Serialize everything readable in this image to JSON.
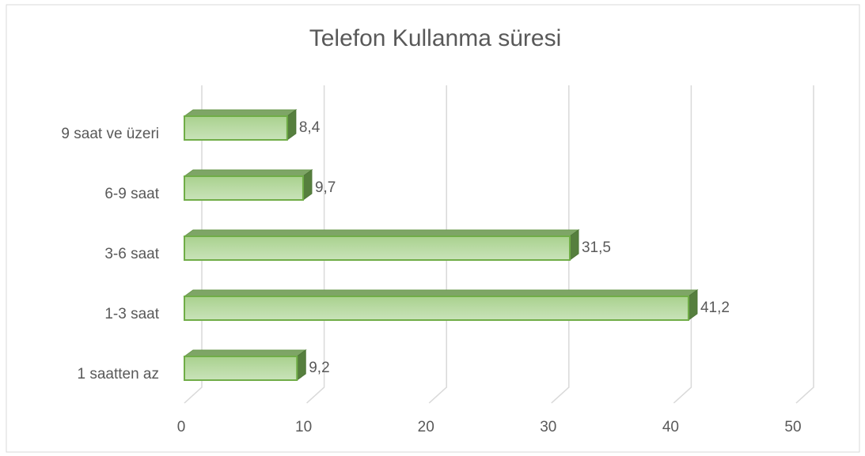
{
  "chart_data": {
    "type": "bar",
    "orientation": "horizontal",
    "title": "Telefon  Kullanma süresi",
    "categories": [
      "9 saat ve üzeri",
      "6-9 saat",
      "3-6 saat",
      "1-3 saat",
      "1 saatten az"
    ],
    "values": [
      8.4,
      9.7,
      31.5,
      41.2,
      9.2
    ],
    "value_labels": [
      "8,4",
      "9,7",
      "31,5",
      "41,2",
      "9,2"
    ],
    "color": "#a9d18e",
    "xlim": [
      0,
      50
    ],
    "xticks": [
      0,
      10,
      20,
      30,
      40,
      50
    ],
    "grid": true
  }
}
